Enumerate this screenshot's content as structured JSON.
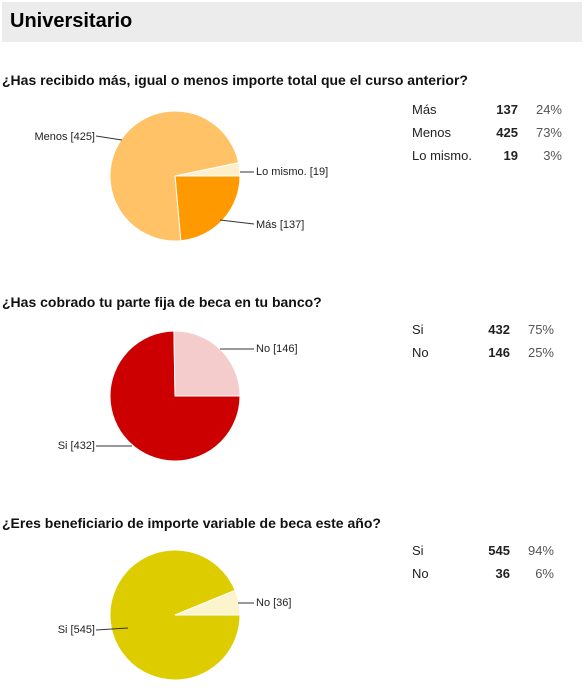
{
  "header": {
    "title": "Universitario"
  },
  "questions": [
    {
      "title": "¿Has recibido más, igual o menos importe total que el curso anterior?"
    },
    {
      "title": "¿Has cobrado tu parte fija de beca en tu banco?"
    },
    {
      "title": "¿Eres beneficiario de importe variable de beca este año?"
    }
  ],
  "chart_data": [
    {
      "type": "pie",
      "title": "¿Has recibido más, igual o menos importe total que el curso anterior?",
      "categories": [
        "Más",
        "Menos",
        "Lo mismo."
      ],
      "values": [
        137,
        425,
        19
      ],
      "percent_labels": [
        "24%",
        "73%",
        "3%"
      ],
      "slice_labels": [
        "Más [137]",
        "Menos [425]",
        "Lo mismo.  [19]"
      ],
      "colors": [
        "#ff9900",
        "#ffc266",
        "#ffefc9"
      ]
    },
    {
      "type": "pie",
      "title": "¿Has cobrado tu parte fija de beca en tu banco?",
      "categories": [
        "Si",
        "No"
      ],
      "values": [
        432,
        146
      ],
      "percent_labels": [
        "75%",
        "25%"
      ],
      "slice_labels": [
        "Si [432]",
        "No [146]"
      ],
      "colors": [
        "#cc0000",
        "#f4cccc"
      ]
    },
    {
      "type": "pie",
      "title": "¿Eres beneficiario de importe variable de beca este año?",
      "categories": [
        "Si",
        "No"
      ],
      "values": [
        545,
        36
      ],
      "percent_labels": [
        "94%",
        "6%"
      ],
      "slice_labels": [
        "Si [545]",
        "No [36]"
      ],
      "colors": [
        "#ddcc00",
        "#fbf4cc"
      ]
    }
  ]
}
